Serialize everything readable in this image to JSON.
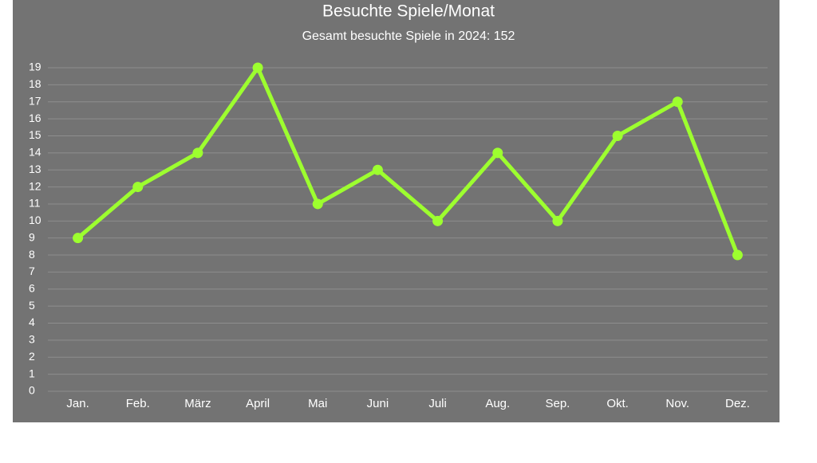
{
  "chart_data": {
    "type": "line",
    "title": "Besuchte Spiele/Monat",
    "subtitle": "Gesamt besuchte Spiele in 2024: 152",
    "categories": [
      "Jan.",
      "Feb.",
      "März",
      "April",
      "Mai",
      "Juni",
      "Juli",
      "Aug.",
      "Sep.",
      "Okt.",
      "Nov.",
      "Dez."
    ],
    "values": [
      9,
      12,
      14,
      19,
      11,
      13,
      10,
      14,
      10,
      15,
      17,
      8
    ],
    "color": "#9dff2f",
    "ylim": [
      0,
      19
    ],
    "yticks": [
      0,
      1,
      2,
      3,
      4,
      5,
      6,
      7,
      8,
      9,
      10,
      11,
      12,
      13,
      14,
      15,
      16,
      17,
      18,
      19
    ],
    "grid": true
  }
}
